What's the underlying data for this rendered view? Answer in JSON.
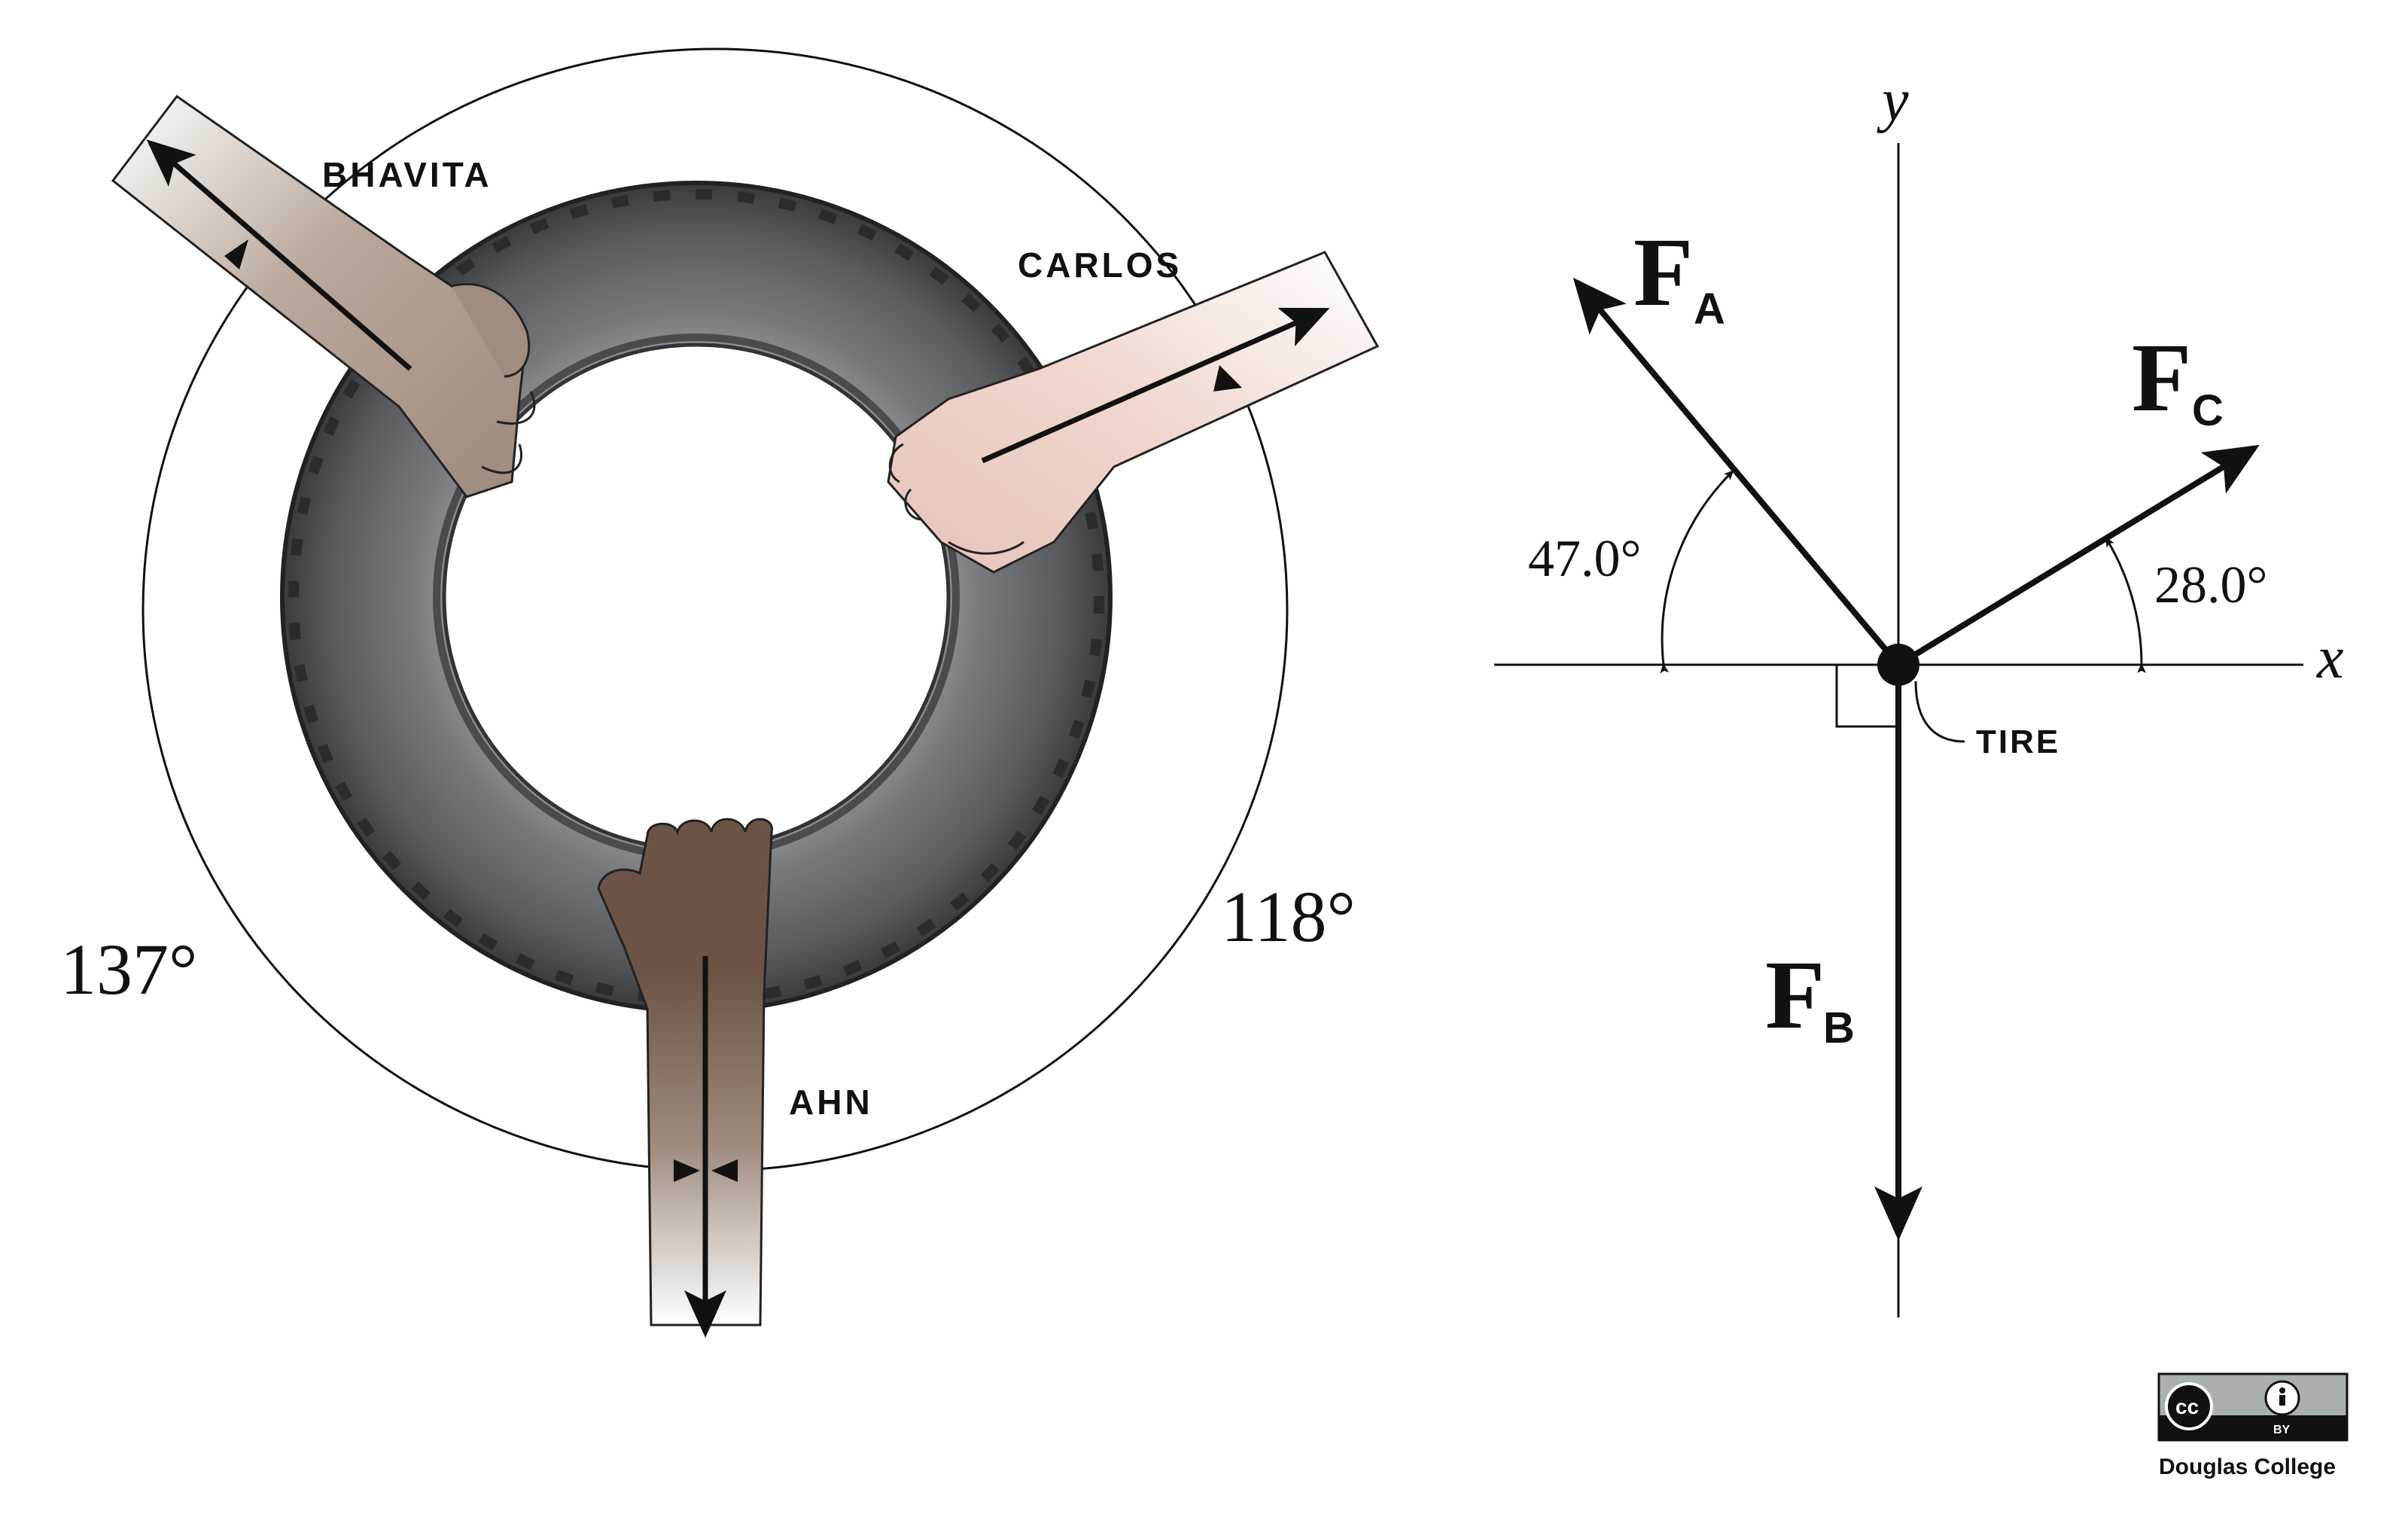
{
  "left_panel": {
    "names": {
      "bhavita": "BHAVITA",
      "carlos": "CARLOS",
      "ahn": "AHN"
    },
    "angles": {
      "left": "137°",
      "right": "118°"
    }
  },
  "right_panel": {
    "axes": {
      "x": "x",
      "y": "y"
    },
    "forces": {
      "a": {
        "main": "F",
        "sub": "A"
      },
      "b": {
        "main": "F",
        "sub": "B"
      },
      "c": {
        "main": "F",
        "sub": "C"
      }
    },
    "angles": {
      "a": "47.0°",
      "c": "28.0°"
    },
    "tire_label": "TIRE"
  },
  "license": {
    "cc": "cc",
    "by": "BY",
    "credit": "Douglas College"
  },
  "colors": {
    "tire_outer": "#3c3d40",
    "tire_mid": "#6b6c70",
    "hand_bhavita": "#a08d7f",
    "hand_carlos": "#e8c7bc",
    "hand_ahn": "#6b5346",
    "ink": "#111111"
  }
}
